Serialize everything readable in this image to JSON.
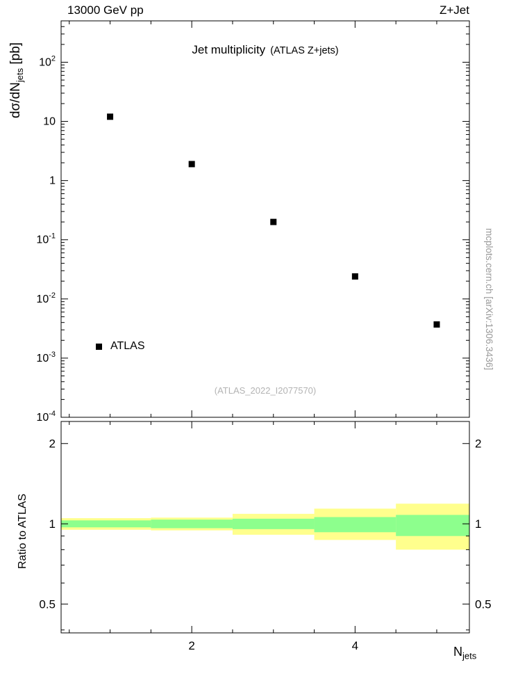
{
  "header": {
    "left": "13000 GeV pp",
    "right": "Z+Jet"
  },
  "labels": {
    "title_main": "Jet multiplicity",
    "title_note": "(ATLAS Z+jets)",
    "ylabel_prefix": "dσ/dN",
    "ylabel_sub": "jets",
    "ylabel_suffix": " [pb]",
    "legend": "ATLAS",
    "watermark": "(ATLAS_2022_I2077570)",
    "side_note": "mcplots.cern.ch [arXiv:1306.3436]",
    "ratio_ylabel": "Ratio to ATLAS",
    "xlabel_prefix": "N",
    "xlabel_sub": "jets"
  },
  "chart_data": [
    {
      "type": "scatter",
      "panel": "main",
      "title": "Jet multiplicity (ATLAS Z+jets)",
      "xlabel": "N_jets",
      "ylabel": "dσ/dN_jets [pb]",
      "yscale": "log",
      "xlim": [
        0.4,
        5.4
      ],
      "ylim": [
        0.0001,
        500
      ],
      "x_major_ticks": [
        2,
        4
      ],
      "x_minor_step": 0.5,
      "legend_position": "lower-left",
      "series": [
        {
          "name": "ATLAS",
          "marker": "filled-square",
          "color": "#000000",
          "x": [
            1,
            2,
            3,
            4,
            5
          ],
          "y": [
            12,
            1.9,
            0.2,
            0.024,
            0.0037
          ]
        }
      ]
    },
    {
      "type": "ratio-bands",
      "panel": "ratio",
      "ylabel": "Ratio to ATLAS",
      "yscale": "log",
      "xlim": [
        0.4,
        5.4
      ],
      "ylim": [
        0.39,
        2.42
      ],
      "y_major_ticks": [
        0.5,
        1,
        2
      ],
      "y_minor_ticks": [
        0.4,
        0.6,
        0.7,
        0.8,
        0.9
      ],
      "x_major_ticks": [
        2,
        4
      ],
      "x_minor_step": 0.5,
      "band_colors": {
        "outer": "#ffff8d",
        "inner": "#8dff8d"
      },
      "bins": [
        {
          "xlo": 0.4,
          "xhi": 1.5,
          "outer": [
            0.95,
            1.05
          ],
          "inner": [
            0.97,
            1.03
          ]
        },
        {
          "xlo": 1.5,
          "xhi": 2.5,
          "outer": [
            0.945,
            1.055
          ],
          "inner": [
            0.963,
            1.037
          ]
        },
        {
          "xlo": 2.5,
          "xhi": 3.5,
          "outer": [
            0.91,
            1.09
          ],
          "inner": [
            0.955,
            1.045
          ]
        },
        {
          "xlo": 3.5,
          "xhi": 4.5,
          "outer": [
            0.87,
            1.14
          ],
          "inner": [
            0.93,
            1.06
          ]
        },
        {
          "xlo": 4.5,
          "xhi": 5.4,
          "outer": [
            0.8,
            1.19
          ],
          "inner": [
            0.9,
            1.08
          ]
        }
      ]
    }
  ]
}
